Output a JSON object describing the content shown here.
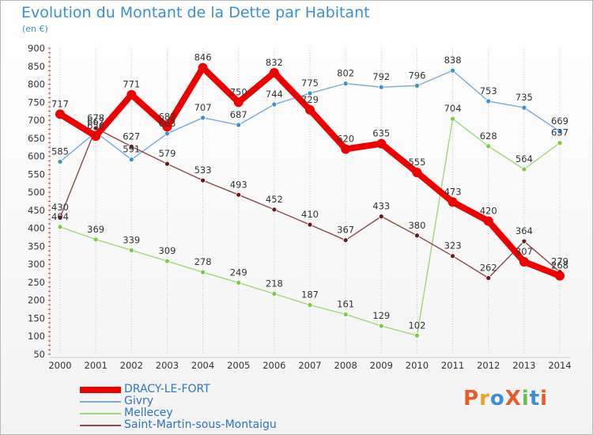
{
  "title": "Evolution du Montant de la Dette par Habitant",
  "unit": "(en €)",
  "logo": {
    "text": "ProXiti",
    "colors": [
      "#e85a2b",
      "#f0a020",
      "#3a8fd6",
      "#e85a2b",
      "#6cc04a",
      "#3a8fd6",
      "#e85a2b"
    ]
  },
  "chart_data": {
    "type": "line",
    "x": [
      "2000",
      "2001",
      "2002",
      "2003",
      "2004",
      "2005",
      "2006",
      "2007",
      "2008",
      "2009",
      "2010",
      "2011",
      "2012",
      "2013",
      "2014"
    ],
    "ylim": [
      50,
      900
    ],
    "yticks": [
      50,
      100,
      150,
      200,
      250,
      300,
      350,
      400,
      450,
      500,
      550,
      600,
      650,
      700,
      750,
      800,
      850,
      900
    ],
    "grid": "vertical-dotted",
    "legend_position": "bottom-left",
    "series": [
      {
        "name": "DRACY-LE-FORT",
        "color": "#ee0000",
        "point_color": "#ee0000",
        "values": [
          717,
          656,
          771,
          682,
          846,
          750,
          832,
          729,
          620,
          635,
          555,
          473,
          420,
          307,
          268
        ]
      },
      {
        "name": "Givry",
        "color": "#7aaad8",
        "point_color": "#3a8fd6",
        "values": [
          585,
          667,
          591,
          663,
          707,
          687,
          744,
          775,
          802,
          792,
          796,
          838,
          753,
          735,
          669
        ]
      },
      {
        "name": "Mellecey",
        "color": "#9fd87a",
        "point_color": "#7cc847",
        "values": [
          404,
          369,
          339,
          309,
          278,
          249,
          218,
          187,
          161,
          129,
          102,
          704,
          628,
          564,
          637
        ]
      },
      {
        "name": "Saint-Martin-sous-Montaigu",
        "color": "#8a4a4a",
        "point_color": "#6b1a1a",
        "values": [
          430,
          678,
          627,
          579,
          533,
          493,
          452,
          410,
          367,
          433,
          380,
          323,
          262,
          364,
          279
        ]
      }
    ]
  }
}
